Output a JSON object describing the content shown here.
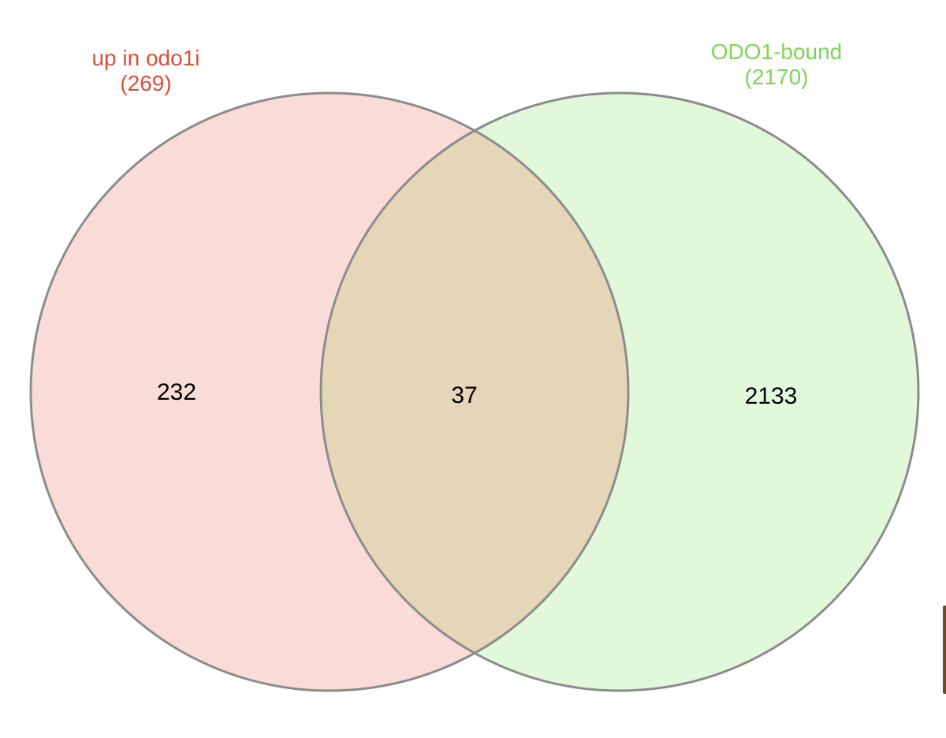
{
  "sets": {
    "left": {
      "name": "up in odo1i",
      "size": "(269)",
      "color": "#d9503a",
      "fill": "#f9dcd8"
    },
    "right": {
      "name": "ODO1-bound",
      "size": "(2170)",
      "color": "#7fd35a",
      "fill": "#e2f8da"
    }
  },
  "regions": {
    "left_only": "232",
    "intersection": "37",
    "right_only": "2133"
  },
  "colors": {
    "intersection_fill": "#e6d6b8",
    "outline": "#8c8c8c"
  }
}
